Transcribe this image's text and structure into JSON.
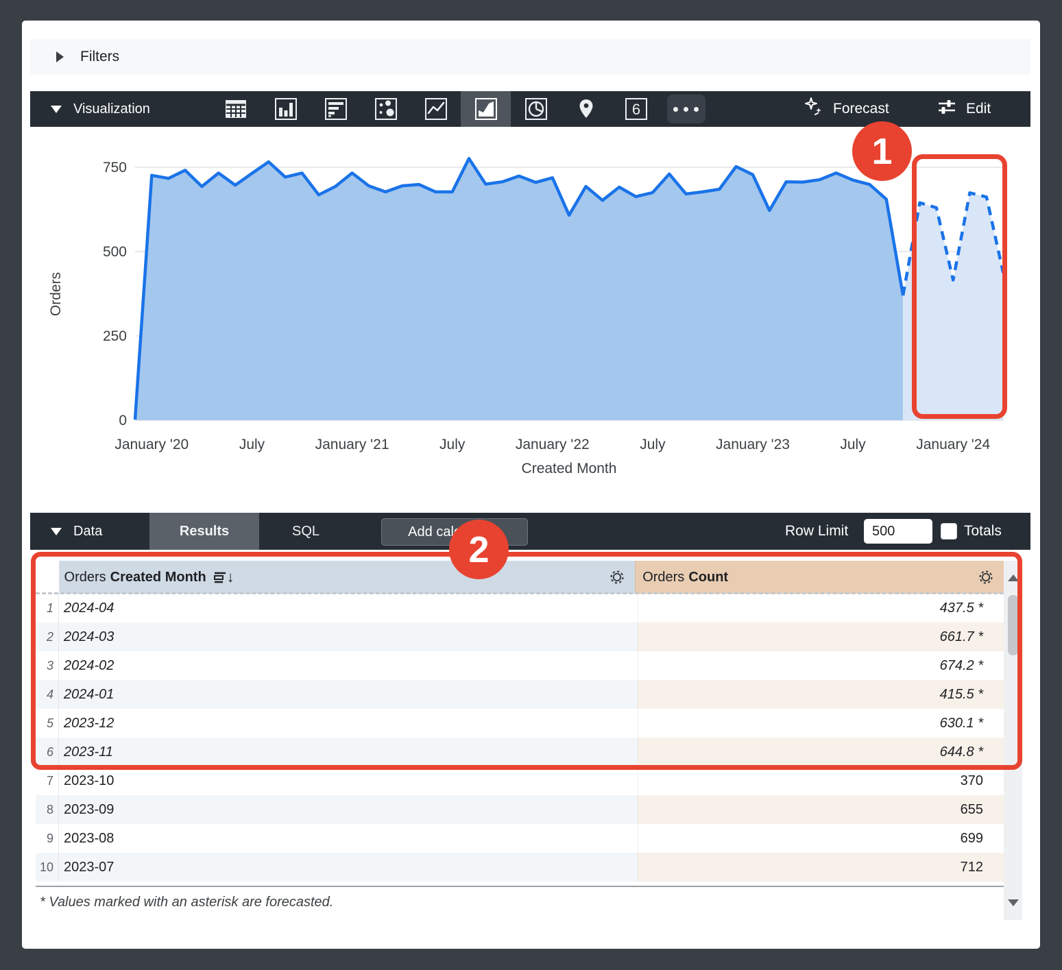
{
  "filters": {
    "label": "Filters"
  },
  "viz_toolbar": {
    "label": "Visualization",
    "icons": [
      "table-chart",
      "column-chart",
      "bar-chart",
      "scatter-chart",
      "line-chart",
      "area-chart",
      "pie-chart",
      "map-chart",
      "single-value",
      "more-options"
    ],
    "selected_icon": "area-chart",
    "single_value_text": "6",
    "forecast_label": "Forecast",
    "edit_label": "Edit"
  },
  "annotations": {
    "badge1": "1",
    "badge2": "2"
  },
  "chart_data": {
    "type": "area",
    "title": "",
    "ylabel": "Orders",
    "xlabel": "Created Month",
    "ylim": [
      0,
      750
    ],
    "y_ticks": [
      0,
      250,
      500,
      750
    ],
    "grid": "horizontal",
    "legend": "none",
    "line_color": "#1a73e8",
    "area_fill": "#a4c7ee",
    "forecast_fill": "#d9e6f7",
    "months": [
      "2019-12",
      "2020-01",
      "2020-02",
      "2020-03",
      "2020-04",
      "2020-05",
      "2020-06",
      "2020-07",
      "2020-08",
      "2020-09",
      "2020-10",
      "2020-11",
      "2020-12",
      "2021-01",
      "2021-02",
      "2021-03",
      "2021-04",
      "2021-05",
      "2021-06",
      "2021-07",
      "2021-08",
      "2021-09",
      "2021-10",
      "2021-11",
      "2021-12",
      "2022-01",
      "2022-02",
      "2022-03",
      "2022-04",
      "2022-05",
      "2022-06",
      "2022-07",
      "2022-08",
      "2022-09",
      "2022-10",
      "2022-11",
      "2022-12",
      "2023-01",
      "2023-02",
      "2023-03",
      "2023-04",
      "2023-05",
      "2023-06",
      "2023-07",
      "2023-08",
      "2023-09",
      "2023-10",
      "2023-11",
      "2023-12",
      "2024-01",
      "2024-02",
      "2024-03",
      "2024-04"
    ],
    "series": [
      {
        "name": "actual",
        "style": "solid",
        "values": [
          2,
          726,
          717,
          741,
          693,
          733,
          697,
          732,
          766,
          721,
          733,
          668,
          693,
          733,
          695,
          677,
          695,
          699,
          677,
          677,
          776,
          700,
          707,
          724,
          705,
          719,
          608,
          693,
          652,
          691,
          663,
          675,
          730,
          671,
          677,
          685,
          752,
          728,
          622,
          707,
          706,
          713,
          733,
          712,
          699,
          655,
          370
        ]
      },
      {
        "name": "forecast",
        "style": "dashed",
        "values": [
          644.8,
          630.1,
          415.5,
          674.2,
          661.7,
          437.5
        ]
      }
    ],
    "x_ticks": [
      {
        "label": "January '20",
        "month": "2020-01"
      },
      {
        "label": "July",
        "month": "2020-07"
      },
      {
        "label": "January '21",
        "month": "2021-01"
      },
      {
        "label": "July",
        "month": "2021-07"
      },
      {
        "label": "January '22",
        "month": "2022-01"
      },
      {
        "label": "July",
        "month": "2022-07"
      },
      {
        "label": "January '23",
        "month": "2023-01"
      },
      {
        "label": "July",
        "month": "2023-07"
      },
      {
        "label": "January '24",
        "month": "2024-01"
      }
    ]
  },
  "data_toolbar": {
    "label": "Data",
    "tabs": [
      "Results",
      "SQL"
    ],
    "active_tab": "Results",
    "results_label": "Results",
    "sql_label": "SQL",
    "add_calculation_label": "Add calculation",
    "row_limit_label": "Row Limit",
    "row_limit_value": "500",
    "totals_label": "Totals"
  },
  "table": {
    "columns": [
      {
        "prefix": "Orders",
        "label": "Created Month",
        "sorted": "desc"
      },
      {
        "prefix": "Orders",
        "label": "Count"
      }
    ],
    "rows": [
      {
        "n": "1",
        "month": "2024-04",
        "count": "437.5 *",
        "forecast": true
      },
      {
        "n": "2",
        "month": "2024-03",
        "count": "661.7 *",
        "forecast": true
      },
      {
        "n": "3",
        "month": "2024-02",
        "count": "674.2 *",
        "forecast": true
      },
      {
        "n": "4",
        "month": "2024-01",
        "count": "415.5 *",
        "forecast": true
      },
      {
        "n": "5",
        "month": "2023-12",
        "count": "630.1 *",
        "forecast": true
      },
      {
        "n": "6",
        "month": "2023-11",
        "count": "644.8 *",
        "forecast": true
      },
      {
        "n": "7",
        "month": "2023-10",
        "count": "370",
        "forecast": false
      },
      {
        "n": "8",
        "month": "2023-09",
        "count": "655",
        "forecast": false
      },
      {
        "n": "9",
        "month": "2023-08",
        "count": "699",
        "forecast": false
      },
      {
        "n": "10",
        "month": "2023-07",
        "count": "712",
        "forecast": false
      }
    ]
  },
  "footnote": "* Values marked with an asterisk are forecasted.",
  "colors": {
    "annotation_red": "#e84330",
    "accent_blue": "#1a73e8",
    "toolbar_bg": "#272d35",
    "month_header_bg": "#cfdae5",
    "count_header_bg": "#e9cdb3"
  }
}
